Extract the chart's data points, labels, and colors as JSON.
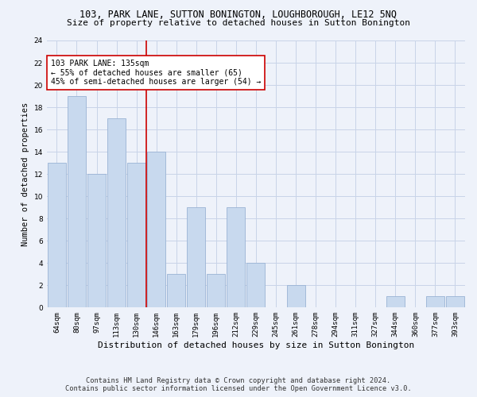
{
  "title": "103, PARK LANE, SUTTON BONINGTON, LOUGHBOROUGH, LE12 5NQ",
  "subtitle": "Size of property relative to detached houses in Sutton Bonington",
  "xlabel": "Distribution of detached houses by size in Sutton Bonington",
  "ylabel": "Number of detached properties",
  "categories": [
    "64sqm",
    "80sqm",
    "97sqm",
    "113sqm",
    "130sqm",
    "146sqm",
    "163sqm",
    "179sqm",
    "196sqm",
    "212sqm",
    "229sqm",
    "245sqm",
    "261sqm",
    "278sqm",
    "294sqm",
    "311sqm",
    "327sqm",
    "344sqm",
    "360sqm",
    "377sqm",
    "393sqm"
  ],
  "values": [
    13,
    19,
    12,
    17,
    13,
    14,
    3,
    9,
    3,
    9,
    4,
    0,
    2,
    0,
    0,
    0,
    0,
    1,
    0,
    1,
    1
  ],
  "bar_color": "#c8d9ee",
  "bar_edge_color": "#9ab3d5",
  "grid_color": "#c8d4e8",
  "background_color": "#eef2fa",
  "vline_x_index": 4,
  "vline_color": "#cc0000",
  "annotation_text": "103 PARK LANE: 135sqm\n← 55% of detached houses are smaller (65)\n45% of semi-detached houses are larger (54) →",
  "annotation_box_color": "#ffffff",
  "annotation_box_edge_color": "#cc0000",
  "ylim": [
    0,
    24
  ],
  "yticks": [
    0,
    2,
    4,
    6,
    8,
    10,
    12,
    14,
    16,
    18,
    20,
    22,
    24
  ],
  "footer_line1": "Contains HM Land Registry data © Crown copyright and database right 2024.",
  "footer_line2": "Contains public sector information licensed under the Open Government Licence v3.0.",
  "title_fontsize": 8.5,
  "subtitle_fontsize": 8.0,
  "xlabel_fontsize": 8.0,
  "ylabel_fontsize": 7.5,
  "tick_fontsize": 6.5,
  "annotation_fontsize": 7.0,
  "footer_fontsize": 6.2
}
